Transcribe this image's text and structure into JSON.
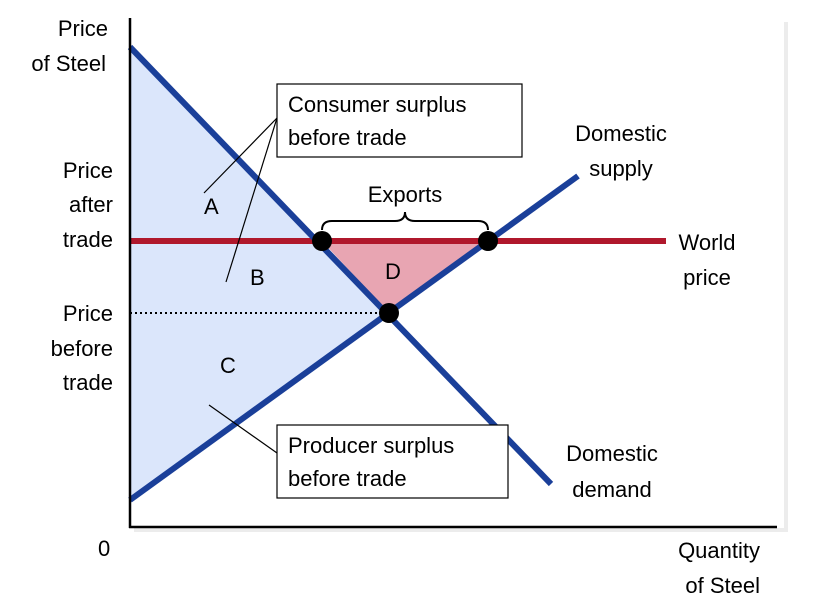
{
  "y_axis": {
    "title_lines": [
      "Price",
      "of Steel"
    ],
    "price_after_trade_lines": [
      "Price",
      "after",
      "trade"
    ],
    "price_before_trade_lines": [
      "Price",
      "before",
      "trade"
    ]
  },
  "x_axis": {
    "origin_label": "0",
    "title_lines": [
      "Quantity",
      "of Steel"
    ]
  },
  "curves": {
    "supply_lines": [
      "Domestic",
      "supply"
    ],
    "demand_lines": [
      "Domestic",
      "demand"
    ],
    "world_price_lines": [
      "World",
      "price"
    ]
  },
  "areas": {
    "a": "A",
    "b": "B",
    "c": "C",
    "d": "D"
  },
  "exports_label": "Exports",
  "callouts": {
    "consumer_surplus_lines": [
      "Consumer surplus",
      "before trade"
    ],
    "producer_surplus_lines": [
      "Producer surplus",
      "before trade"
    ]
  },
  "colors": {
    "curve_blue": "#1a3f99",
    "world_price_red": "#b0182c",
    "surplus_fill": "#dbe6fb",
    "gain_fill": "#e8a5b2",
    "axis": "#000000",
    "shadow": "#d9d9d9"
  }
}
